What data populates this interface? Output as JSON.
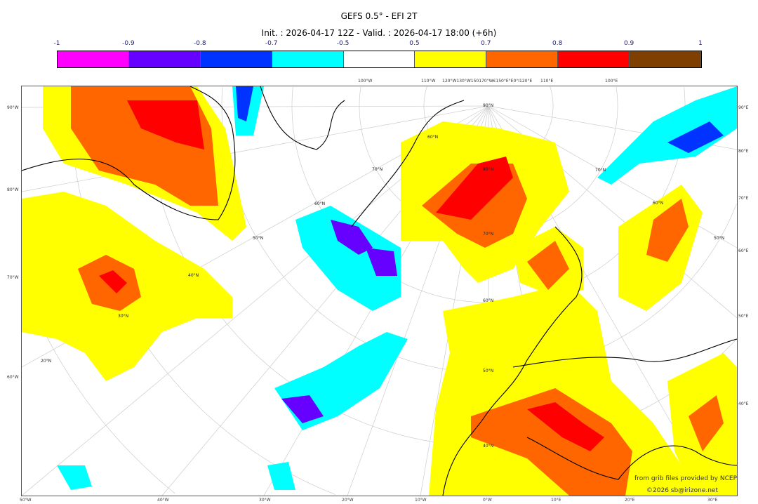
{
  "title": "GEFS 0.5° - EFI 2T",
  "subtitle": "Init. : 2026-04-17 12Z - Valid. : 2026-04-17 18:00 (+6h)",
  "colorbar": {
    "labels": [
      "-1",
      "-0.9",
      "-0.8",
      "-0.7",
      "-0.5",
      "0.5",
      "0.7",
      "0.8",
      "0.9",
      "1"
    ],
    "colors": [
      "#ff00ff",
      "#6600ff",
      "#0033ff",
      "#00ffff",
      "#ffffff",
      "#ffff00",
      "#ff6600",
      "#ff0000",
      "#7f3f00"
    ]
  },
  "axes": {
    "left": [
      "90°W",
      "80°W",
      "70°W",
      "60°W"
    ],
    "right": [
      "90°E",
      "80°E",
      "70°E",
      "60°E",
      "50°E",
      "40°E"
    ],
    "bottom": [
      "50°W",
      "40°W",
      "30°W",
      "20°W",
      "10°W",
      "0°W",
      "10°E",
      "20°E",
      "30°E"
    ],
    "top": [
      "100°W",
      "110°W",
      "120°W130°W150170°W€150°E°E0°I120°E",
      "110°E",
      "100°E"
    ]
  },
  "latitude_labels": [
    "90°N",
    "80°N",
    "70°N",
    "60°N",
    "50°N",
    "40°N",
    "70°N",
    "60°N",
    "50°N",
    "40°N",
    "30°N",
    "20°N",
    "60°N",
    "70°N",
    "60°N",
    "50°N"
  ],
  "credits": {
    "source": "from grib files provided by NCEP",
    "copyright": "©2026 sb@irizone.net"
  }
}
